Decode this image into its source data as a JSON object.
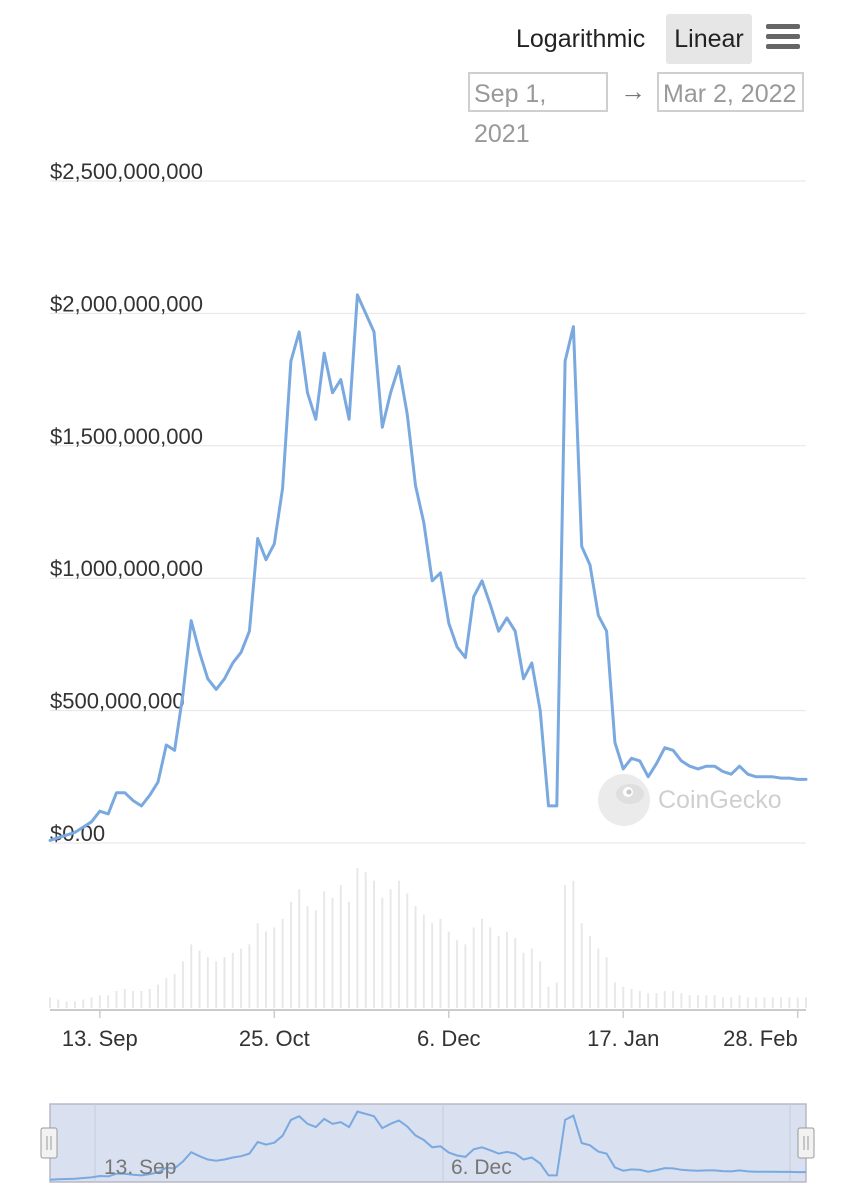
{
  "toolbar": {
    "logarithmic_label": "Logarithmic",
    "linear_label": "Linear",
    "menu_icon": "hamburger-menu-icon",
    "date_from": "Sep 1, 2021",
    "date_arrow": "→",
    "date_to": "Mar 2, 2022"
  },
  "watermark": {
    "text": "CoinGecko",
    "icon": "gecko-logo-icon"
  },
  "colors": {
    "line": "#7aa9e0",
    "navigator_fill": "#d9e0f0",
    "grid": "#e6e6e6"
  },
  "chart_data": {
    "type": "line",
    "title": "",
    "xlabel": "",
    "ylabel": "",
    "y_scale": "linear",
    "ylim": [
      0,
      2500000000
    ],
    "y_ticks": [
      0,
      500000000,
      1000000000,
      1500000000,
      2000000000,
      2500000000
    ],
    "y_tick_labels": [
      "$0.00",
      "$500,000,000",
      "$1,000,000,000",
      "$1,500,000,000",
      "$2,000,000,000",
      "$2,500,000,000"
    ],
    "xlim": [
      "2021-09-01",
      "2022-03-02"
    ],
    "x_ticks": [
      "2021-09-13",
      "2021-10-25",
      "2021-12-06",
      "2022-01-17",
      "2022-02-28"
    ],
    "x_tick_labels": [
      "13. Sep",
      "25. Oct",
      "6. Dec",
      "17. Jan",
      "28. Feb"
    ],
    "grid": true,
    "series": [
      {
        "x": [
          "2021-09-01",
          "2021-09-03",
          "2021-09-05",
          "2021-09-07",
          "2021-09-09",
          "2021-09-11",
          "2021-09-13",
          "2021-09-15",
          "2021-09-17",
          "2021-09-19",
          "2021-09-21",
          "2021-09-23",
          "2021-09-25",
          "2021-09-27",
          "2021-09-29",
          "2021-10-01",
          "2021-10-03",
          "2021-10-05",
          "2021-10-07",
          "2021-10-09",
          "2021-10-11",
          "2021-10-13",
          "2021-10-15",
          "2021-10-17",
          "2021-10-19",
          "2021-10-21",
          "2021-10-23",
          "2021-10-25",
          "2021-10-27",
          "2021-10-29",
          "2021-10-31",
          "2021-11-02",
          "2021-11-04",
          "2021-11-06",
          "2021-11-08",
          "2021-11-10",
          "2021-11-12",
          "2021-11-14",
          "2021-11-16",
          "2021-11-18",
          "2021-11-20",
          "2021-11-22",
          "2021-11-24",
          "2021-11-26",
          "2021-11-28",
          "2021-11-30",
          "2021-12-02",
          "2021-12-04",
          "2021-12-06",
          "2021-12-08",
          "2021-12-10",
          "2021-12-12",
          "2021-12-14",
          "2021-12-16",
          "2021-12-18",
          "2021-12-20",
          "2021-12-22",
          "2021-12-24",
          "2021-12-26",
          "2021-12-28",
          "2021-12-30",
          "2022-01-01",
          "2022-01-03",
          "2022-01-05",
          "2022-01-07",
          "2022-01-09",
          "2022-01-11",
          "2022-01-13",
          "2022-01-15",
          "2022-01-17",
          "2022-01-19",
          "2022-01-21",
          "2022-01-23",
          "2022-01-25",
          "2022-01-27",
          "2022-01-29",
          "2022-01-31",
          "2022-02-02",
          "2022-02-04",
          "2022-02-06",
          "2022-02-08",
          "2022-02-10",
          "2022-02-12",
          "2022-02-14",
          "2022-02-16",
          "2022-02-18",
          "2022-02-20",
          "2022-02-22",
          "2022-02-24",
          "2022-02-26",
          "2022-02-28",
          "2022-03-02"
        ],
        "values": [
          10000000,
          20000000,
          30000000,
          40000000,
          60000000,
          80000000,
          120000000,
          110000000,
          190000000,
          190000000,
          160000000,
          140000000,
          180000000,
          230000000,
          370000000,
          350000000,
          560000000,
          840000000,
          720000000,
          620000000,
          580000000,
          620000000,
          680000000,
          720000000,
          800000000,
          1150000000,
          1070000000,
          1130000000,
          1340000000,
          1820000000,
          1930000000,
          1700000000,
          1600000000,
          1850000000,
          1700000000,
          1750000000,
          1600000000,
          2070000000,
          2000000000,
          1930000000,
          1570000000,
          1700000000,
          1800000000,
          1620000000,
          1350000000,
          1210000000,
          990000000,
          1020000000,
          830000000,
          740000000,
          700000000,
          930000000,
          990000000,
          900000000,
          800000000,
          850000000,
          800000000,
          620000000,
          680000000,
          500000000,
          140000000,
          140000000,
          1820000000,
          1950000000,
          1120000000,
          1050000000,
          860000000,
          800000000,
          380000000,
          280000000,
          320000000,
          310000000,
          250000000,
          300000000,
          360000000,
          350000000,
          310000000,
          290000000,
          280000000,
          290000000,
          290000000,
          270000000,
          260000000,
          290000000,
          260000000,
          250000000,
          250000000,
          250000000,
          245000000,
          245000000,
          240000000,
          240000000
        ]
      }
    ],
    "volume_bars": [
      5,
      4,
      3,
      3,
      4,
      5,
      6,
      6,
      8,
      9,
      8,
      8,
      9,
      11,
      14,
      16,
      22,
      30,
      27,
      24,
      22,
      24,
      26,
      28,
      30,
      40,
      36,
      38,
      42,
      50,
      56,
      48,
      46,
      55,
      52,
      58,
      50,
      66,
      64,
      60,
      52,
      56,
      60,
      54,
      48,
      44,
      40,
      42,
      36,
      32,
      30,
      38,
      42,
      38,
      34,
      36,
      33,
      26,
      28,
      22,
      10,
      12,
      58,
      60,
      40,
      34,
      28,
      24,
      12,
      10,
      9,
      8,
      7,
      7,
      8,
      8,
      7,
      6,
      6,
      6,
      6,
      5,
      5,
      6,
      5,
      5,
      5,
      5,
      5,
      5,
      5,
      5
    ],
    "navigator": {
      "x_tick_labels": [
        "13. Sep",
        "6. Dec"
      ]
    }
  }
}
